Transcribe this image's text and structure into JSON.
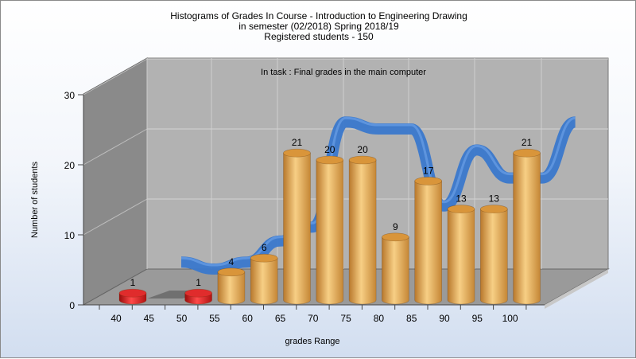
{
  "chart_data": {
    "type": "bar",
    "title_lines": [
      "Histograms of Grades  In Course - Introduction to Engineering Drawing",
      "in semester  (02/2018) Spring 2018/19",
      "Registered students - 150"
    ],
    "subtitle": "In task : Final grades in the main computer",
    "xlabel": "grades Range",
    "ylabel": "Number of students",
    "x_tick_labels": [
      "40",
      "45",
      "50",
      "55",
      "60",
      "65",
      "70",
      "75",
      "80",
      "85",
      "90",
      "95",
      "100"
    ],
    "y_tick_labels": [
      "0",
      "10",
      "20",
      "30"
    ],
    "ylim": [
      0,
      30
    ],
    "grid": true,
    "bars": [
      {
        "label": "40-45",
        "value": 1,
        "color": "#d81818"
      },
      {
        "label": "45-50",
        "value": 0,
        "color": "#d81818"
      },
      {
        "label": "50-55",
        "value": 1,
        "color": "#d81818"
      },
      {
        "label": "55-60",
        "value": 4,
        "color": "#e3a54d"
      },
      {
        "label": "60-65",
        "value": 6,
        "color": "#e3a54d"
      },
      {
        "label": "65-70",
        "value": 21,
        "color": "#e3a54d"
      },
      {
        "label": "70-75",
        "value": 20,
        "color": "#e3a54d"
      },
      {
        "label": "75-80",
        "value": 20,
        "color": "#e3a54d"
      },
      {
        "label": "80-85",
        "value": 9,
        "color": "#e3a54d"
      },
      {
        "label": "85-90",
        "value": 17,
        "color": "#e3a54d"
      },
      {
        "label": "90-95",
        "value": 13,
        "color": "#e3a54d"
      },
      {
        "label": "95-100",
        "value": 13,
        "color": "#e3a54d"
      },
      {
        "label": "100",
        "value": 21,
        "color": "#e3a54d"
      }
    ],
    "curve_color": "#3a78cc",
    "colors": {
      "wall": "#b2b2b2",
      "side_wall": "#8a8a8a",
      "floor": "#9a9a9a",
      "fail": "#d81818",
      "pass": "#e3a54d"
    }
  }
}
